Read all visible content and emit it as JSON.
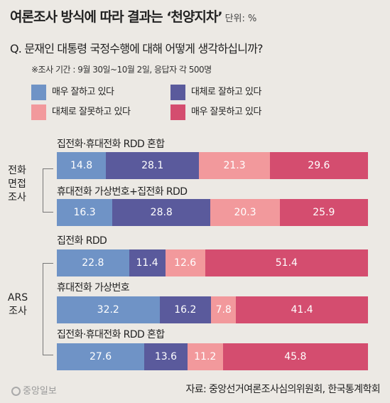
{
  "header": {
    "title": "여론조사 방식에 따라 결과는 ‘천양지차’",
    "unit": "단위: %"
  },
  "question": "Q. 문재인 대통령 국정수행에 대해 어떻게 생각하십니까?",
  "note": "※조사 기간 : 9월 30일~10월 2일, 응답자 각 500명",
  "legend": [
    {
      "label": "매우  잘하고 있다",
      "color": "#6f93c6"
    },
    {
      "label": "대체로 잘하고 있다",
      "color": "#5a5a9c"
    },
    {
      "label": "대체로 잘못하고 있다",
      "color": "#f2999c"
    },
    {
      "label": "매우  잘못하고 있다",
      "color": "#d44d6f"
    }
  ],
  "groups": [
    {
      "label": "전화\n면접\n조사"
    },
    {
      "label": "ARS\n조사"
    }
  ],
  "footer": {
    "logo": "중앙일보",
    "source": "자료: 중앙선거여론조사심의위원회, 한국통계학회"
  },
  "chart_data": {
    "type": "bar",
    "orientation": "horizontal",
    "stacked": true,
    "series_names": [
      "매우  잘하고 있다",
      "대체로 잘하고 있다",
      "대체로 잘못하고 있다",
      "매우  잘못하고 있다"
    ],
    "categories": [
      "집전화·휴대전화 RDD 혼합",
      "휴대전화 가상번호+집전화 RDD",
      "집전화 RDD",
      "휴대전화 가상번호",
      "집전화·휴대전화 RDD 혼합"
    ],
    "values": [
      [
        14.8,
        28.1,
        21.3,
        29.6
      ],
      [
        16.3,
        28.8,
        20.3,
        25.9
      ],
      [
        22.8,
        11.4,
        12.6,
        51.4
      ],
      [
        32.2,
        16.2,
        7.8,
        41.4
      ],
      [
        27.6,
        13.6,
        11.2,
        45.8
      ]
    ],
    "labels": [
      [
        "14.8",
        "28.1",
        "21.3",
        "29.6"
      ],
      [
        "16.3",
        "28.8",
        "20.3",
        "25.9"
      ],
      [
        "22.8",
        "11.4",
        "12.6",
        "51.4"
      ],
      [
        "32.2",
        "16.2",
        "7.8",
        "41.4"
      ],
      [
        "27.6",
        "13.6",
        "11.2",
        "45.8"
      ]
    ],
    "colors": [
      "#6f93c6",
      "#5a5a9c",
      "#f2999c",
      "#d44d6f"
    ]
  }
}
